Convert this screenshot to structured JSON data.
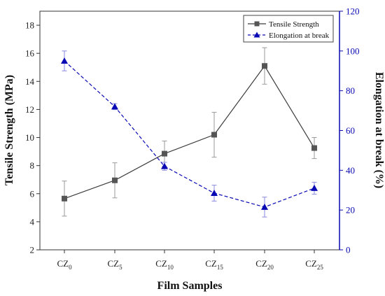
{
  "chart_data": {
    "type": "line",
    "categories": [
      "CZ",
      "CZ",
      "CZ",
      "CZ",
      "CZ",
      "CZ"
    ],
    "category_subscripts": [
      "0",
      "5",
      "10",
      "15",
      "20",
      "25"
    ],
    "xlabel": "Film Samples",
    "y_left": {
      "label": "Tensile Strength (MPa)",
      "ylim": [
        2,
        19
      ],
      "ticks": [
        "2",
        "4",
        "6",
        "8",
        "10",
        "12",
        "14",
        "16",
        "18"
      ],
      "color": "#222222"
    },
    "y_right": {
      "label": "Elongation at break (%)",
      "ylim": [
        0,
        120
      ],
      "ticks": [
        "0",
        "20",
        "40",
        "60",
        "80",
        "100",
        "120"
      ],
      "color": "#0a0ab4"
    },
    "series": [
      {
        "name": "Tensile Strength",
        "axis": "left",
        "marker": "square",
        "line_style": "solid",
        "color": "#3c3c3c",
        "values": [
          5.65,
          6.95,
          8.85,
          10.2,
          15.1,
          9.25
        ],
        "errors": [
          1.25,
          1.25,
          0.9,
          1.6,
          1.3,
          0.75
        ]
      },
      {
        "name": "Elongation at break",
        "axis": "right",
        "marker": "triangle",
        "line_style": "dashed",
        "color": "#0a0ab4",
        "values": [
          95,
          72,
          42,
          28.5,
          21.5,
          31
        ],
        "errors": [
          5,
          1.5,
          2,
          4,
          5,
          3
        ]
      }
    ],
    "legend_position": "top-right",
    "grid": false
  }
}
